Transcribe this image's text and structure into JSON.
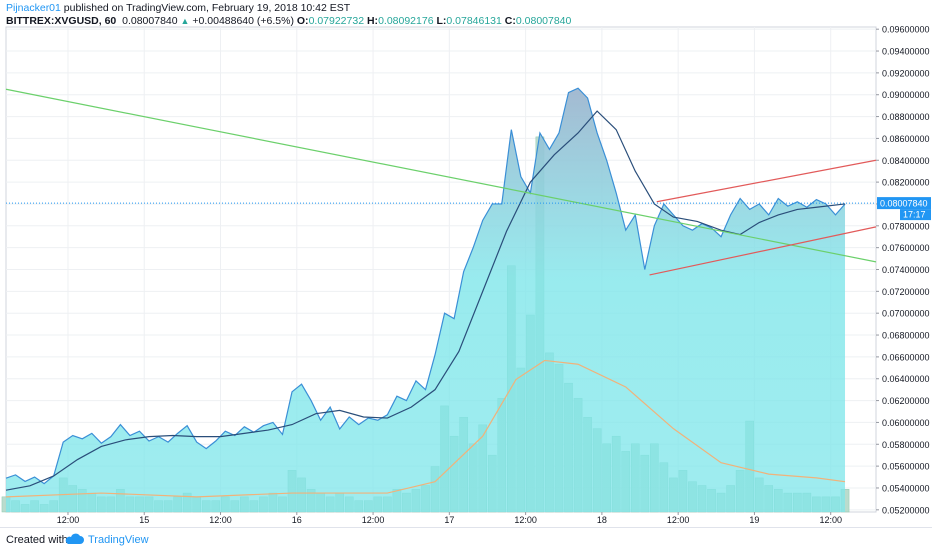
{
  "header": {
    "author": "Pijnacker01",
    "published": " published on TradingView.com, February 19, 2018 10:42 EST",
    "symbol": "BITTREX:XVGUSD, 60",
    "last": "0.08007840",
    "change": "+0.00488640 (+6.5%)",
    "o_label": "O:",
    "o_value": "0.07922732",
    "h_label": "H:",
    "h_value": "0.08092176",
    "l_label": "L:",
    "l_value": "0.07846131",
    "c_label": "C:",
    "c_value": "0.08007840"
  },
  "footer": {
    "created": "Created with",
    "brand": "TradingView"
  },
  "colors": {
    "area_fill": "#7fe6ea",
    "area_top": "#9fb6cf",
    "price_line": "#3a8fd6",
    "ma_line": "#2a4e7a",
    "green_trend": "#6bd06b",
    "channel": "#e25a5a",
    "price_tag": "#2196f3",
    "volume": "#b2d8c8",
    "volume_ma": "#f1b27a"
  },
  "chart_data": {
    "type": "area",
    "title": "",
    "xlabel": "",
    "ylabel": "",
    "ylim": [
      0.0518,
      0.0962
    ],
    "grid": true,
    "x_tick_labels": [
      "12:00",
      "15",
      "12:00",
      "16",
      "12:00",
      "17",
      "12:00",
      "18",
      "12:00",
      "19",
      "12:00"
    ],
    "x_tick_positions": [
      2.6,
      5.8,
      9.0,
      12.2,
      15.4,
      18.6,
      21.8,
      25.0,
      28.2,
      31.4,
      34.6
    ],
    "y_ticks": [
      "0.05200000",
      "0.05400000",
      "0.05600000",
      "0.05800000",
      "0.06000000",
      "0.06200000",
      "0.06400000",
      "0.06600000",
      "0.06800000",
      "0.07000000",
      "0.07200000",
      "0.07400000",
      "0.07600000",
      "0.07800000",
      "0.08000000",
      "0.08200000",
      "0.08400000",
      "0.08600000",
      "0.08800000",
      "0.09000000",
      "0.09200000",
      "0.09400000",
      "0.09600000"
    ],
    "last_price_label": "0.08007840",
    "countdown_label": "17:17",
    "last_price": 0.0800784,
    "x_max": 36.5,
    "price_points": [
      [
        0,
        0.0549
      ],
      [
        0.4,
        0.0552
      ],
      [
        0.8,
        0.0546
      ],
      [
        1.2,
        0.055
      ],
      [
        1.6,
        0.0544
      ],
      [
        2.0,
        0.0551
      ],
      [
        2.4,
        0.0582
      ],
      [
        2.8,
        0.0588
      ],
      [
        3.2,
        0.0585
      ],
      [
        3.6,
        0.059
      ],
      [
        4.0,
        0.0581
      ],
      [
        4.4,
        0.0587
      ],
      [
        4.8,
        0.0598
      ],
      [
        5.2,
        0.0588
      ],
      [
        5.6,
        0.0592
      ],
      [
        6.0,
        0.0583
      ],
      [
        6.4,
        0.0587
      ],
      [
        6.8,
        0.0582
      ],
      [
        7.2,
        0.059
      ],
      [
        7.6,
        0.0597
      ],
      [
        8.0,
        0.0582
      ],
      [
        8.4,
        0.0576
      ],
      [
        8.8,
        0.0583
      ],
      [
        9.2,
        0.0592
      ],
      [
        9.6,
        0.0588
      ],
      [
        10.0,
        0.0596
      ],
      [
        10.4,
        0.0591
      ],
      [
        10.8,
        0.0597
      ],
      [
        11.2,
        0.06
      ],
      [
        11.6,
        0.0589
      ],
      [
        12.0,
        0.0628
      ],
      [
        12.4,
        0.0635
      ],
      [
        12.8,
        0.062
      ],
      [
        13.2,
        0.0602
      ],
      [
        13.6,
        0.0614
      ],
      [
        14.0,
        0.0594
      ],
      [
        14.4,
        0.0605
      ],
      [
        14.8,
        0.0598
      ],
      [
        15.2,
        0.0604
      ],
      [
        15.6,
        0.0602
      ],
      [
        16.0,
        0.0607
      ],
      [
        16.4,
        0.0624
      ],
      [
        16.8,
        0.062
      ],
      [
        17.2,
        0.0638
      ],
      [
        17.6,
        0.063
      ],
      [
        18.0,
        0.0662
      ],
      [
        18.4,
        0.07
      ],
      [
        18.8,
        0.0695
      ],
      [
        19.2,
        0.0738
      ],
      [
        19.6,
        0.076
      ],
      [
        20.0,
        0.0785
      ],
      [
        20.4,
        0.08
      ],
      [
        20.8,
        0.08
      ],
      [
        21.2,
        0.0868
      ],
      [
        21.6,
        0.0825
      ],
      [
        22.0,
        0.081
      ],
      [
        22.4,
        0.0865
      ],
      [
        22.8,
        0.085
      ],
      [
        23.2,
        0.0865
      ],
      [
        23.6,
        0.0902
      ],
      [
        24.0,
        0.0906
      ],
      [
        24.4,
        0.0897
      ],
      [
        24.8,
        0.0865
      ],
      [
        25.2,
        0.084
      ],
      [
        25.6,
        0.081
      ],
      [
        26.0,
        0.0776
      ],
      [
        26.4,
        0.079
      ],
      [
        26.8,
        0.074
      ],
      [
        27.2,
        0.078
      ],
      [
        27.6,
        0.08
      ],
      [
        28.0,
        0.079
      ],
      [
        28.4,
        0.078
      ],
      [
        28.8,
        0.0776
      ],
      [
        29.2,
        0.0782
      ],
      [
        29.6,
        0.0778
      ],
      [
        30.0,
        0.077
      ],
      [
        30.4,
        0.079
      ],
      [
        30.8,
        0.0805
      ],
      [
        31.2,
        0.0795
      ],
      [
        31.6,
        0.08
      ],
      [
        32.0,
        0.079
      ],
      [
        32.4,
        0.0805
      ],
      [
        32.8,
        0.0798
      ],
      [
        33.2,
        0.0802
      ],
      [
        33.6,
        0.0797
      ],
      [
        34.0,
        0.0804
      ],
      [
        34.4,
        0.08
      ],
      [
        34.8,
        0.079
      ],
      [
        35.2,
        0.08
      ]
    ],
    "ma_points": [
      [
        0,
        0.0538
      ],
      [
        1.0,
        0.0542
      ],
      [
        2.0,
        0.0551
      ],
      [
        3.0,
        0.0566
      ],
      [
        4.0,
        0.0578
      ],
      [
        5.0,
        0.0584
      ],
      [
        6.0,
        0.0587
      ],
      [
        7.0,
        0.0588
      ],
      [
        8.0,
        0.0587
      ],
      [
        9.0,
        0.0587
      ],
      [
        10.0,
        0.059
      ],
      [
        11.0,
        0.0593
      ],
      [
        12.0,
        0.0598
      ],
      [
        13.0,
        0.0608
      ],
      [
        14.0,
        0.0611
      ],
      [
        15.0,
        0.0605
      ],
      [
        16.0,
        0.0604
      ],
      [
        17.0,
        0.0614
      ],
      [
        18.0,
        0.063
      ],
      [
        19.0,
        0.0665
      ],
      [
        20.0,
        0.072
      ],
      [
        21.0,
        0.0775
      ],
      [
        22.0,
        0.082
      ],
      [
        23.0,
        0.0845
      ],
      [
        24.0,
        0.0865
      ],
      [
        24.8,
        0.0885
      ],
      [
        25.6,
        0.0868
      ],
      [
        26.4,
        0.083
      ],
      [
        27.2,
        0.08
      ],
      [
        28.0,
        0.0788
      ],
      [
        29.0,
        0.0784
      ],
      [
        30.0,
        0.0776
      ],
      [
        30.8,
        0.0772
      ],
      [
        31.6,
        0.0783
      ],
      [
        32.4,
        0.079
      ],
      [
        33.2,
        0.0795
      ],
      [
        34.0,
        0.0797
      ],
      [
        35.2,
        0.08
      ]
    ],
    "volume_ylim": [
      0,
      0.0128
    ],
    "volume": [
      [
        0,
        0.0004
      ],
      [
        0.4,
        0.0003
      ],
      [
        0.8,
        0.0002
      ],
      [
        1.2,
        0.0003
      ],
      [
        1.6,
        0.0002
      ],
      [
        2.0,
        0.0003
      ],
      [
        2.4,
        0.0009
      ],
      [
        2.8,
        0.0007
      ],
      [
        3.2,
        0.0006
      ],
      [
        3.6,
        0.0005
      ],
      [
        4.0,
        0.0004
      ],
      [
        4.4,
        0.0004
      ],
      [
        4.8,
        0.0006
      ],
      [
        5.2,
        0.0004
      ],
      [
        5.6,
        0.0004
      ],
      [
        6.0,
        0.0004
      ],
      [
        6.4,
        0.0003
      ],
      [
        6.8,
        0.0003
      ],
      [
        7.2,
        0.0004
      ],
      [
        7.6,
        0.0005
      ],
      [
        8.0,
        0.0004
      ],
      [
        8.4,
        0.0003
      ],
      [
        8.8,
        0.0003
      ],
      [
        9.2,
        0.0004
      ],
      [
        9.6,
        0.0003
      ],
      [
        10.0,
        0.0004
      ],
      [
        10.4,
        0.0003
      ],
      [
        10.8,
        0.0004
      ],
      [
        11.2,
        0.0005
      ],
      [
        11.6,
        0.0004
      ],
      [
        12.0,
        0.0011
      ],
      [
        12.4,
        0.0009
      ],
      [
        12.8,
        0.0006
      ],
      [
        13.2,
        0.0005
      ],
      [
        13.6,
        0.0004
      ],
      [
        14.0,
        0.0005
      ],
      [
        14.4,
        0.0004
      ],
      [
        14.8,
        0.0003
      ],
      [
        15.2,
        0.0003
      ],
      [
        15.6,
        0.0004
      ],
      [
        16.0,
        0.0004
      ],
      [
        16.4,
        0.0006
      ],
      [
        16.8,
        0.0005
      ],
      [
        17.2,
        0.0006
      ],
      [
        17.6,
        0.0007
      ],
      [
        18.0,
        0.0012
      ],
      [
        18.4,
        0.0028
      ],
      [
        18.8,
        0.002
      ],
      [
        19.2,
        0.0025
      ],
      [
        19.6,
        0.0018
      ],
      [
        20.0,
        0.0023
      ],
      [
        20.4,
        0.0015
      ],
      [
        20.8,
        0.003
      ],
      [
        21.2,
        0.0065
      ],
      [
        21.6,
        0.0038
      ],
      [
        22.0,
        0.0052
      ],
      [
        22.4,
        0.0099
      ],
      [
        22.8,
        0.0042
      ],
      [
        23.2,
        0.0039
      ],
      [
        23.6,
        0.0034
      ],
      [
        24.0,
        0.003
      ],
      [
        24.4,
        0.0025
      ],
      [
        24.8,
        0.0022
      ],
      [
        25.2,
        0.0018
      ],
      [
        25.6,
        0.002
      ],
      [
        26.0,
        0.0016
      ],
      [
        26.4,
        0.0018
      ],
      [
        26.8,
        0.0015
      ],
      [
        27.2,
        0.0018
      ],
      [
        27.6,
        0.0013
      ],
      [
        28.0,
        0.0009
      ],
      [
        28.4,
        0.0011
      ],
      [
        28.8,
        0.0008
      ],
      [
        29.2,
        0.0007
      ],
      [
        29.6,
        0.0006
      ],
      [
        30.0,
        0.0005
      ],
      [
        30.4,
        0.0007
      ],
      [
        30.8,
        0.0011
      ],
      [
        31.2,
        0.0024
      ],
      [
        31.6,
        0.0009
      ],
      [
        32.0,
        0.0007
      ],
      [
        32.4,
        0.0006
      ],
      [
        32.8,
        0.0005
      ],
      [
        33.2,
        0.0005
      ],
      [
        33.6,
        0.0005
      ],
      [
        34.0,
        0.0004
      ],
      [
        34.4,
        0.0004
      ],
      [
        34.8,
        0.0004
      ],
      [
        35.2,
        0.0006
      ]
    ],
    "volume_ma_points": [
      [
        0,
        0.0004
      ],
      [
        4,
        0.0005
      ],
      [
        8,
        0.0004
      ],
      [
        12,
        0.0005
      ],
      [
        16,
        0.0005
      ],
      [
        18,
        0.0008
      ],
      [
        20,
        0.002
      ],
      [
        21.4,
        0.0035
      ],
      [
        22.6,
        0.004
      ],
      [
        24,
        0.0039
      ],
      [
        26,
        0.0033
      ],
      [
        28,
        0.0022
      ],
      [
        30,
        0.0013
      ],
      [
        32,
        0.001
      ],
      [
        34,
        0.0009
      ],
      [
        35.2,
        0.0008
      ]
    ],
    "trend_lines": [
      {
        "color": "#6bd06b",
        "x1": 0,
        "y1": 0.0905,
        "x2": 36.5,
        "y2": 0.0747
      },
      {
        "color": "#e25a5a",
        "x1": 27.0,
        "y1": 0.0735,
        "x2": 36.5,
        "y2": 0.0779
      },
      {
        "color": "#e25a5a",
        "x1": 27.3,
        "y1": 0.0802,
        "x2": 36.5,
        "y2": 0.084
      }
    ]
  }
}
